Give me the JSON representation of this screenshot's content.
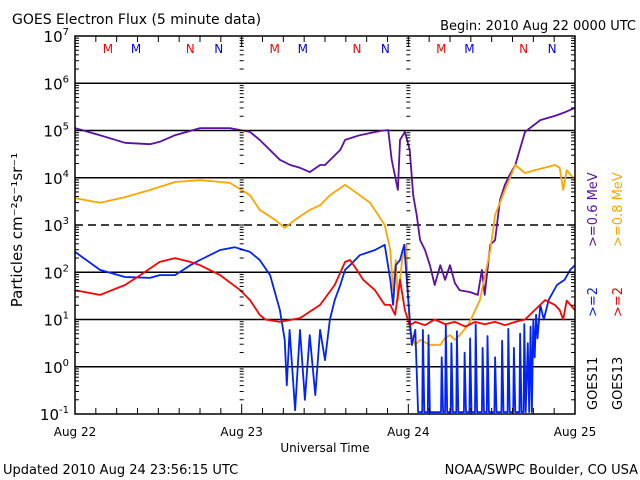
{
  "chart_data": {
    "type": "line",
    "title": "GOES Electron Flux (5 minute data)",
    "begin_label": "Begin: 2010 Aug 22 0000 UTC",
    "xlabel": "Universal Time",
    "ylabel": "Particles cm⁻²s⁻¹sr⁻¹",
    "x_unit": "hours since 2010 Aug 22 0000 UTC",
    "xlim": [
      0,
      72
    ],
    "x_ticks": [
      {
        "hour": 0,
        "label": "Aug 22"
      },
      {
        "hour": 24,
        "label": "Aug 23"
      },
      {
        "hour": 48,
        "label": "Aug 24"
      },
      {
        "hour": 72,
        "label": "Aug 25"
      }
    ],
    "y_scale": "log",
    "ylim_log10": [
      -1,
      7
    ],
    "y_ticks": [
      {
        "base": "10",
        "exp": "7"
      },
      {
        "base": "10",
        "exp": "6"
      },
      {
        "base": "10",
        "exp": "5"
      },
      {
        "base": "10",
        "exp": "4"
      },
      {
        "base": "10",
        "exp": "3"
      },
      {
        "base": "10",
        "exp": "2"
      },
      {
        "base": "10",
        "exp": "1"
      },
      {
        "base": "10",
        "exp": "0"
      },
      {
        "base": "10",
        "exp": "-1"
      }
    ],
    "grid_solid_log10": [
      6,
      5,
      4,
      2,
      1,
      0
    ],
    "grid_dashed_log10": [
      3
    ],
    "markers": [
      {
        "label": "M",
        "color": "#ff0000",
        "hour": 4.75
      },
      {
        "label": "M",
        "color": "#0000ff",
        "hour": 8.8
      },
      {
        "label": "N",
        "color": "#ff0000",
        "hour": 16.6
      },
      {
        "label": "N",
        "color": "#0000ff",
        "hour": 20.7
      },
      {
        "label": "M",
        "color": "#ff0000",
        "hour": 28.75
      },
      {
        "label": "M",
        "color": "#0000ff",
        "hour": 32.8
      },
      {
        "label": "N",
        "color": "#ff0000",
        "hour": 40.6
      },
      {
        "label": "N",
        "color": "#0000ff",
        "hour": 44.7
      },
      {
        "label": "M",
        "color": "#ff0000",
        "hour": 52.75
      },
      {
        "label": "M",
        "color": "#0000ff",
        "hour": 56.8
      },
      {
        "label": "N",
        "color": "#ff0000",
        "hour": 64.6
      },
      {
        "label": "N",
        "color": "#0000ff",
        "hour": 68.7
      }
    ],
    "legend": {
      "placement": "right",
      "columns": [
        {
          "satellite": "GOES11",
          "entries": [
            {
              "label": ">=0.6 MeV",
              "color": "#5a0fa8"
            },
            {
              "label": ">=2",
              "color": "#0022ff"
            }
          ]
        },
        {
          "satellite": "GOES13",
          "entries": [
            {
              "label": ">=0.8 MeV",
              "color": "#ffa500"
            },
            {
              "label": ">=2",
              "color": "#ff0000"
            }
          ]
        }
      ]
    },
    "series": [
      {
        "name": "GOES11 >=0.6 MeV",
        "color": "#5a0fa8",
        "log10_values": [
          [
            0,
            5.05
          ],
          [
            3.6,
            4.9
          ],
          [
            7.2,
            4.74
          ],
          [
            10.8,
            4.71
          ],
          [
            12.2,
            4.76
          ],
          [
            14.4,
            4.9
          ],
          [
            18,
            5.05
          ],
          [
            22.3,
            5.05
          ],
          [
            25.2,
            4.97
          ],
          [
            26.6,
            4.8
          ],
          [
            29.5,
            4.38
          ],
          [
            31,
            4.27
          ],
          [
            32.4,
            4.21
          ],
          [
            33.8,
            4.12
          ],
          [
            35.3,
            4.27
          ],
          [
            36,
            4.27
          ],
          [
            38.2,
            4.59
          ],
          [
            38.9,
            4.8
          ],
          [
            41,
            4.9
          ],
          [
            43.9,
            4.99
          ],
          [
            45.1,
            5.01
          ],
          [
            45.6,
            4.38
          ],
          [
            46.5,
            3.74
          ],
          [
            46.8,
            4.8
          ],
          [
            47.5,
            4.97
          ],
          [
            48.2,
            4.59
          ],
          [
            48.7,
            3.63
          ],
          [
            49.2,
            3.21
          ],
          [
            49.7,
            2.68
          ],
          [
            50.4,
            2.47
          ],
          [
            51.1,
            2.15
          ],
          [
            51.8,
            1.73
          ],
          [
            52.6,
            2.15
          ],
          [
            53.3,
            1.84
          ],
          [
            54,
            2.15
          ],
          [
            54.7,
            1.77
          ],
          [
            55.4,
            1.62
          ],
          [
            56.9,
            1.58
          ],
          [
            58,
            1.52
          ],
          [
            58.6,
            2.05
          ],
          [
            59,
            1.52
          ],
          [
            59.8,
            2.58
          ],
          [
            60.5,
            2.68
          ],
          [
            61.2,
            3.53
          ],
          [
            61.9,
            3.85
          ],
          [
            62.6,
            4.06
          ],
          [
            63.4,
            4.27
          ],
          [
            64.8,
            4.97
          ],
          [
            67,
            5.22
          ],
          [
            69.1,
            5.31
          ],
          [
            70.6,
            5.39
          ],
          [
            72,
            5.48
          ]
        ]
      },
      {
        "name": "GOES13 >=0.8 MeV",
        "color": "#ffa500",
        "log10_values": [
          [
            0,
            3.57
          ],
          [
            3.6,
            3.47
          ],
          [
            7.2,
            3.59
          ],
          [
            10.8,
            3.74
          ],
          [
            14.4,
            3.91
          ],
          [
            18,
            3.95
          ],
          [
            22.3,
            3.89
          ],
          [
            25.2,
            3.63
          ],
          [
            26.6,
            3.32
          ],
          [
            28.8,
            3.11
          ],
          [
            30.2,
            2.94
          ],
          [
            31.7,
            3.11
          ],
          [
            33.8,
            3.32
          ],
          [
            35.3,
            3.42
          ],
          [
            36.7,
            3.63
          ],
          [
            38.9,
            3.85
          ],
          [
            41,
            3.63
          ],
          [
            42.5,
            3.47
          ],
          [
            44.6,
            3.0
          ],
          [
            45.4,
            2.47
          ],
          [
            45.8,
            1.62
          ],
          [
            46.2,
            2.26
          ],
          [
            46.5,
            1.41
          ],
          [
            47.1,
            2.26
          ],
          [
            47.7,
            2.58
          ],
          [
            48,
            1.41
          ],
          [
            48.2,
            0.78
          ],
          [
            49,
            0.46
          ],
          [
            49.7,
            0.57
          ],
          [
            51.1,
            0.46
          ],
          [
            52.6,
            0.46
          ],
          [
            53.3,
            0.61
          ],
          [
            54,
            0.67
          ],
          [
            54.7,
            0.57
          ],
          [
            55.4,
            0.67
          ],
          [
            56.6,
            0.88
          ],
          [
            58.3,
            1.41
          ],
          [
            59.8,
            2.47
          ],
          [
            60.5,
            3.21
          ],
          [
            61.9,
            3.74
          ],
          [
            63.4,
            4.27
          ],
          [
            64.8,
            4.1
          ],
          [
            66.2,
            4.16
          ],
          [
            69.1,
            4.27
          ],
          [
            69.8,
            4.21
          ],
          [
            70.3,
            3.74
          ],
          [
            70.8,
            4.16
          ],
          [
            72,
            3.95
          ]
        ]
      },
      {
        "name": "GOES11 >=2 MeV",
        "color": "#0022ff",
        "log10_values": [
          [
            0,
            2.43
          ],
          [
            3.6,
            2.05
          ],
          [
            7.2,
            1.9
          ],
          [
            10.8,
            1.88
          ],
          [
            12.2,
            1.94
          ],
          [
            14.4,
            1.94
          ],
          [
            16.6,
            2.15
          ],
          [
            18,
            2.26
          ],
          [
            20.9,
            2.47
          ],
          [
            23,
            2.53
          ],
          [
            25.2,
            2.43
          ],
          [
            26.6,
            2.26
          ],
          [
            28.1,
            1.94
          ],
          [
            29.5,
            1.2
          ],
          [
            30.2,
            0.57
          ],
          [
            30.5,
            -0.39
          ],
          [
            30.9,
            0.78
          ],
          [
            31.7,
            -0.92
          ],
          [
            32.4,
            0.78
          ],
          [
            33.1,
            -0.7
          ],
          [
            33.8,
            0.67
          ],
          [
            34.6,
            -0.6
          ],
          [
            35.3,
            0.78
          ],
          [
            36,
            0.14
          ],
          [
            36.7,
            1.0
          ],
          [
            37.4,
            1.41
          ],
          [
            38.2,
            1.73
          ],
          [
            38.9,
            2.05
          ],
          [
            39.6,
            2.15
          ],
          [
            41,
            2.36
          ],
          [
            43.2,
            2.47
          ],
          [
            44.6,
            2.58
          ],
          [
            45.4,
            1.84
          ],
          [
            45.8,
            1.31
          ],
          [
            46.2,
            2.15
          ],
          [
            46.8,
            2.26
          ],
          [
            47.4,
            2.58
          ],
          [
            48,
            1.41
          ],
          [
            48.5,
            0.46
          ],
          [
            49,
            0.78
          ],
          [
            49.4,
            -0.96
          ],
          [
            50,
            -0.96
          ],
          [
            50.1,
            0.78
          ],
          [
            50.3,
            -0.96
          ],
          [
            50.8,
            -0.96
          ],
          [
            50.9,
            0.67
          ],
          [
            51.1,
            -0.96
          ],
          [
            52.7,
            -0.96
          ],
          [
            52.8,
            0.2
          ],
          [
            53,
            -0.96
          ],
          [
            53.3,
            -0.96
          ],
          [
            53.4,
            0.9
          ],
          [
            53.6,
            -0.96
          ],
          [
            54.1,
            -0.96
          ],
          [
            54.2,
            0.5
          ],
          [
            54.4,
            -0.96
          ],
          [
            54.9,
            -0.96
          ],
          [
            55,
            0.75
          ],
          [
            55.2,
            -0.96
          ],
          [
            56,
            -0.96
          ],
          [
            56.1,
            0.3
          ],
          [
            56.3,
            -0.96
          ],
          [
            56.8,
            -0.96
          ],
          [
            56.9,
            0.6
          ],
          [
            57.1,
            -0.96
          ],
          [
            57.6,
            -0.96
          ],
          [
            57.7,
            0.9
          ],
          [
            57.9,
            -0.96
          ],
          [
            58.6,
            -0.96
          ],
          [
            58.7,
            0.4
          ],
          [
            58.9,
            -0.96
          ],
          [
            59.3,
            -0.96
          ],
          [
            59.4,
            0.65
          ],
          [
            59.6,
            -0.96
          ],
          [
            60.4,
            -0.96
          ],
          [
            60.5,
            0.2
          ],
          [
            60.7,
            -0.96
          ],
          [
            61.4,
            -0.96
          ],
          [
            61.5,
            0.55
          ],
          [
            61.7,
            -0.96
          ],
          [
            62.3,
            -0.96
          ],
          [
            62.4,
            0.8
          ],
          [
            62.6,
            -0.96
          ],
          [
            63.1,
            -0.96
          ],
          [
            63.2,
            0.4
          ],
          [
            63.4,
            -0.96
          ],
          [
            64,
            -0.96
          ],
          [
            64.1,
            0.7
          ],
          [
            64.3,
            -0.96
          ],
          [
            64.6,
            -0.96
          ],
          [
            64.7,
            0.9
          ],
          [
            64.9,
            -0.96
          ],
          [
            65.2,
            0.5
          ],
          [
            65.4,
            -0.96
          ],
          [
            65.6,
            0.85
          ],
          [
            65.8,
            -0.96
          ],
          [
            66,
            1.0
          ],
          [
            66.2,
            0.2
          ],
          [
            66.4,
            1.1
          ],
          [
            66.6,
            0.6
          ],
          [
            67,
            1.31
          ],
          [
            67.5,
            1.0
          ],
          [
            68.2,
            1.41
          ],
          [
            69.4,
            1.73
          ],
          [
            70.5,
            1.84
          ],
          [
            71.3,
            2.05
          ],
          [
            72,
            2.15
          ]
        ]
      },
      {
        "name": "GOES13 >=2 MeV",
        "color": "#ff0000",
        "log10_values": [
          [
            0,
            1.62
          ],
          [
            3.6,
            1.52
          ],
          [
            7.2,
            1.73
          ],
          [
            9.4,
            1.94
          ],
          [
            12.2,
            2.22
          ],
          [
            14.4,
            2.3
          ],
          [
            16.6,
            2.22
          ],
          [
            18,
            2.15
          ],
          [
            20.9,
            1.94
          ],
          [
            23.8,
            1.62
          ],
          [
            25.2,
            1.41
          ],
          [
            26.6,
            1.1
          ],
          [
            27.4,
            1.0
          ],
          [
            29.5,
            0.95
          ],
          [
            32.4,
            1.03
          ],
          [
            35.3,
            1.31
          ],
          [
            37.4,
            1.73
          ],
          [
            38.9,
            2.22
          ],
          [
            39.6,
            2.26
          ],
          [
            40.6,
            2.05
          ],
          [
            41.5,
            1.84
          ],
          [
            43.2,
            1.62
          ],
          [
            44.6,
            1.31
          ],
          [
            45.4,
            1.31
          ],
          [
            46.1,
            1.1
          ],
          [
            46.8,
            1.84
          ],
          [
            47.5,
            1.2
          ],
          [
            48.2,
            0.88
          ],
          [
            49,
            0.95
          ],
          [
            50.4,
            0.88
          ],
          [
            51.8,
            1.0
          ],
          [
            53.3,
            0.9
          ],
          [
            54.7,
            0.95
          ],
          [
            56.2,
            0.85
          ],
          [
            57.6,
            0.95
          ],
          [
            59,
            0.9
          ],
          [
            60.5,
            0.95
          ],
          [
            61.9,
            0.88
          ],
          [
            63.4,
            0.95
          ],
          [
            64.8,
            1.0
          ],
          [
            66.2,
            1.2
          ],
          [
            67.7,
            1.41
          ],
          [
            69.1,
            1.31
          ],
          [
            69.8,
            1.2
          ],
          [
            70.3,
            1.0
          ],
          [
            70.8,
            1.4
          ],
          [
            72,
            1.2
          ]
        ]
      }
    ]
  },
  "footer": {
    "updated": "Updated 2010 Aug 24 23:56:15 UTC",
    "credit": "NOAA/SWPC Boulder, CO USA"
  }
}
